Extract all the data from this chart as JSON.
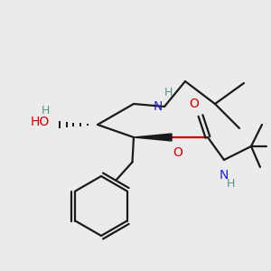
{
  "bg_color": "#ebebeb",
  "bond_color": "#1a1a1a",
  "oxygen_color": "#cc0000",
  "nitrogen_color": "#2222cc",
  "h_color": "#5a9090",
  "lw": 1.6,
  "figsize": [
    3.0,
    3.0
  ],
  "dpi": 100,
  "xlim": [
    0,
    300
  ],
  "ylim": [
    0,
    300
  ]
}
